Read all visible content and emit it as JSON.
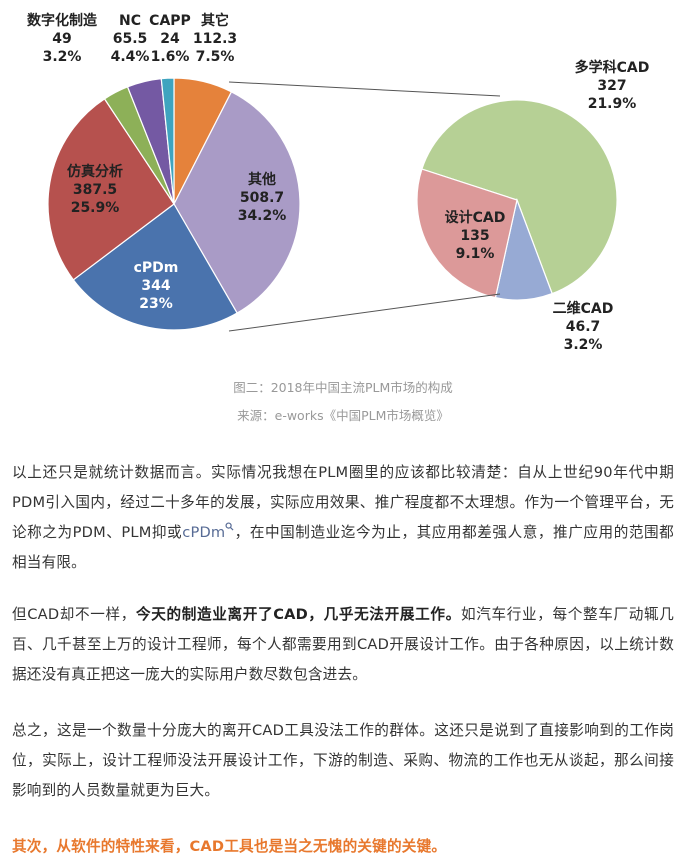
{
  "chart_data": {
    "type": "pie",
    "main": {
      "slices": [
        {
          "label": "其它",
          "value": 112.3,
          "pct": "7.5%",
          "color": "#e5823b"
        },
        {
          "label": "其他",
          "value": 508.7,
          "pct": "34.2%",
          "color": "#a99bc6"
        },
        {
          "label": "cPDm",
          "value": 344,
          "pct": "23%",
          "color": "#4a73ad"
        },
        {
          "label": "仿真分析",
          "value": 387.5,
          "pct": "25.9%",
          "color": "#b6514e"
        },
        {
          "label": "数字化制造",
          "value": 49,
          "pct": "3.2%",
          "color": "#8db058"
        },
        {
          "label": "NC",
          "value": 65.5,
          "pct": "4.4%",
          "color": "#7459a3"
        },
        {
          "label": "CAPP",
          "value": 24,
          "pct": "1.6%",
          "color": "#3fa4bf"
        }
      ]
    },
    "sub": {
      "slices": [
        {
          "label": "多学科CAD",
          "value": 327,
          "pct": "21.9%",
          "color": "#b6d095"
        },
        {
          "label": "二维CAD",
          "value": 46.7,
          "pct": "3.2%",
          "color": "#97aad4"
        },
        {
          "label": "设计CAD",
          "value": 135,
          "pct": "9.1%",
          "color": "#dc9999"
        }
      ]
    }
  },
  "caption": {
    "line1": "图二：2018年中国主流PLM市场的构成",
    "line2": "来源：e-works《中国PLM市场概览》"
  },
  "paragraphs": {
    "p1": {
      "a": "以上还只是就统计数据而言。实际情况我想在PLM圈里的应该都比较清楚：自从上世纪90年代中期PDM引入国内，经过二十多年的发展，实际应用效果、推广程度都不太理想。作为一个管理平台，无论称之为PDM、PLM抑或",
      "link": "cPDm",
      "b": "，在中国制造业迄今为止，其应用都差强人意，推广应用的范围都相当有限。"
    },
    "p2": {
      "a": "但CAD却不一样，",
      "bold": "今天的制造业离开了CAD，几乎无法开展工作。",
      "b": "如汽车行业，每个整车厂动辄几百、几千甚至上万的设计工程师，每个人都需要用到CAD开展设计工作。由于各种原因，以上统计数据还没有真正把这一庞大的实际用户数尽数包含进去。"
    },
    "p3": "总之，这是一个数量十分庞大的离开CAD工具没法工作的群体。这还只是说到了直接影响到的工作岗位，实际上，设计工程师没法开展设计工作，下游的制造、采购、物流的工作也无从谈起，那么间接影响到的人员数量就更为巨大。",
    "p4": "其次，从软件的特性来看，CAD工具也是当之无愧的关键的关键。"
  }
}
